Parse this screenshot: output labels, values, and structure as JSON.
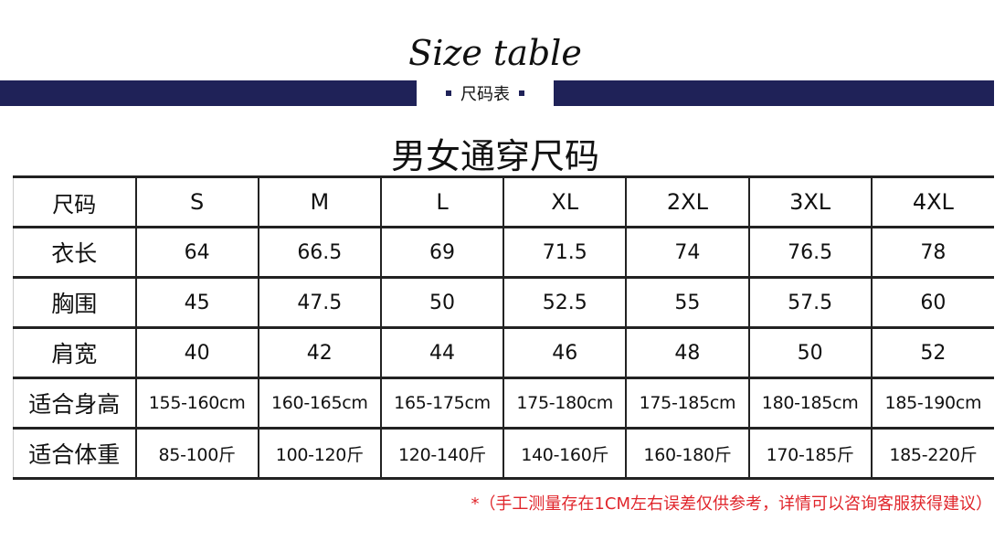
{
  "header": {
    "title_en": "Size table",
    "subtitle": "尺码表",
    "title_cn": "男女通穿尺码",
    "bar_color": "#1f2258"
  },
  "table": {
    "header": [
      "尺码",
      "S",
      "M",
      "L",
      "XL",
      "2XL",
      "3XL",
      "4XL"
    ],
    "rows": [
      [
        "衣长",
        "64",
        "66.5",
        "69",
        "71.5",
        "74",
        "76.5",
        "78"
      ],
      [
        "胸围",
        "45",
        "47.5",
        "50",
        "52.5",
        "55",
        "57.5",
        "60"
      ],
      [
        "肩宽",
        "40",
        "42",
        "44",
        "46",
        "48",
        "50",
        "52"
      ],
      [
        "适合身高",
        "155-160cm",
        "160-165cm",
        "165-175cm",
        "175-180cm",
        "175-185cm",
        "180-185cm",
        "185-190cm"
      ],
      [
        "适合体重",
        "85-100斤",
        "100-120斤",
        "120-140斤",
        "140-160斤",
        "160-180斤",
        "170-185斤",
        "185-220斤"
      ]
    ]
  },
  "note": {
    "text": "*（手工测量存在1CM左右误差仅供参考，详情可以咨询客服获得建议）",
    "color": "#e0252b"
  }
}
